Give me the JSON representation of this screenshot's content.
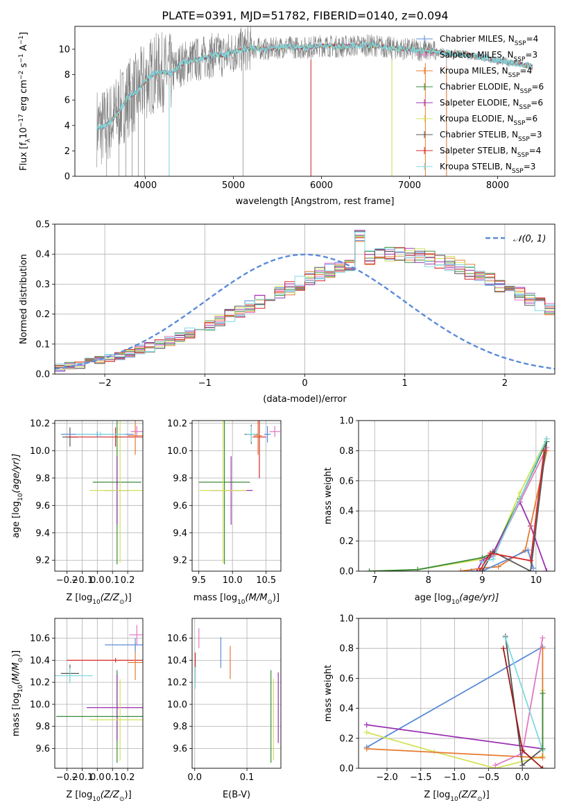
{
  "figure_title": "PLATE=0391, MJD=51782, FIBERID=0140, z=0.094",
  "palette": {
    "grey": "#808080",
    "cyan": "#7fd9e0",
    "red": "#d62728",
    "purple": "#9a2fb2",
    "green": "#3a8a3a",
    "yellow": "#d4e157",
    "orange": "#e57a30",
    "blue": "#5b8bd9",
    "pink": "#e377c2",
    "darkgrey": "#555555",
    "darkred": "#a01818"
  },
  "chart_data": [
    {
      "id": "spectrum",
      "type": "line",
      "title": "PLATE=0391, MJD=51782, FIBERID=0140, z=0.094",
      "xlabel": "wavelength [Angstrom, rest frame]",
      "ylabel_main": "Flux [f",
      "ylabel_sub": "λ",
      "ylabel_rest": "10",
      "ylabel_exp": "−17",
      "ylabel_units": " erg cm",
      "ylabel_exp2": "−2",
      "ylabel_s": " s",
      "ylabel_exp3": "−1",
      "ylabel_A": " A",
      "ylabel_exp4": "−1",
      "ylabel_end": "]",
      "xlim": [
        3200,
        8650
      ],
      "ylim": [
        0,
        11.8
      ],
      "xticks": [
        4000,
        5000,
        6000,
        7000,
        8000
      ],
      "yticks": [
        0,
        2,
        4,
        6,
        8,
        10
      ],
      "grid": false,
      "legend_position": "top-right",
      "continuum": {
        "x": [
          3450,
          3500,
          3600,
          3700,
          3800,
          3900,
          4000,
          4100,
          4200,
          4300,
          4400,
          4500,
          4600,
          4700,
          4800,
          4900,
          5000,
          5200,
          5400,
          5600,
          5800,
          6000,
          6200,
          6400,
          6600,
          6800,
          7000,
          7200,
          7400,
          7600,
          7800,
          8000,
          8200,
          8400
        ],
        "y": [
          3.9,
          3.8,
          4.3,
          5.1,
          6.2,
          6.6,
          7.5,
          8.1,
          8.2,
          8.1,
          8.8,
          9.1,
          9.2,
          9.4,
          9.6,
          9.5,
          9.8,
          10.1,
          10.0,
          10.2,
          10.1,
          10.3,
          10.2,
          10.3,
          10.3,
          10.1,
          10.0,
          9.9,
          9.7,
          9.6,
          9.4,
          9.1,
          8.9,
          8.6
        ]
      },
      "legend": [
        {
          "main": "Chabrier MILES, N",
          "sub": "SSP",
          "end": "=4",
          "color": "#5b8bd9"
        },
        {
          "main": "Salpeter MILES, N",
          "sub": "SSP",
          "end": "=3",
          "color": "#e377c2"
        },
        {
          "main": "Kroupa MILES, N",
          "sub": "SSP",
          "end": "=4",
          "color": "#e57a30"
        },
        {
          "main": "Chabrier ELODIE, N",
          "sub": "SSP",
          "end": "=6",
          "color": "#3a8a3a"
        },
        {
          "main": "Salpeter ELODIE, N",
          "sub": "SSP",
          "end": "=6",
          "color": "#9a2fb2"
        },
        {
          "main": "Kroupa ELODIE, N",
          "sub": "SSP",
          "end": "=6",
          "color": "#d4e157"
        },
        {
          "main": "Chabrier STELIB, N",
          "sub": "SSP",
          "end": "=3",
          "color": "#555555"
        },
        {
          "main": "Salpeter STELIB, N",
          "sub": "SSP",
          "end": "=4",
          "color": "#d62728"
        },
        {
          "main": "Kroupa STELIB, N",
          "sub": "SSP",
          "end": "=3",
          "color": "#7fd9e0"
        }
      ]
    },
    {
      "id": "residuals",
      "type": "line",
      "xlabel": "(data-model)/error",
      "ylabel": "Normed distribution",
      "xlim": [
        -2.5,
        2.5
      ],
      "ylim": [
        0,
        0.5
      ],
      "xticks": [
        -2,
        -1,
        0,
        1,
        2
      ],
      "yticks": [
        0.0,
        0.1,
        0.2,
        0.3,
        0.4,
        0.5
      ],
      "grid": true,
      "legend_position": "top-right",
      "gaussian_label": "𝒩(0, 1)",
      "gaussian_color": "#5b8bd9",
      "hist_bin_width": 0.1,
      "hist_base": [
        0.02,
        0.022,
        0.027,
        0.032,
        0.04,
        0.046,
        0.055,
        0.062,
        0.07,
        0.08,
        0.09,
        0.1,
        0.112,
        0.125,
        0.138,
        0.151,
        0.165,
        0.18,
        0.195,
        0.21,
        0.225,
        0.241,
        0.256,
        0.272,
        0.288,
        0.302,
        0.318,
        0.332,
        0.346,
        0.36,
        0.37,
        0.38,
        0.388,
        0.395,
        0.4,
        0.4,
        0.398,
        0.393,
        0.385,
        0.377,
        0.367,
        0.355,
        0.342,
        0.328,
        0.313,
        0.298,
        0.282,
        0.266,
        0.25,
        0.233,
        0.217,
        0.201,
        0.186,
        0.17,
        0.156,
        0.142,
        0.129,
        0.116,
        0.104,
        0.093,
        0.083,
        0.073,
        0.064,
        0.056,
        0.049,
        0.043,
        0.037,
        0.032,
        0.027,
        0.022
      ]
    },
    {
      "id": "age_vs_Z",
      "type": "scatter",
      "xlabel": "Z [log",
      "xlabel_sub": "10",
      "xlabel_rest": "(Z/Z",
      "xlabel_sun": "⊙",
      "xlabel_end": ")]",
      "ylabel": "age  [log",
      "ylabel_sub": "10",
      "ylabel_rest": "(age/yr)]",
      "xlim": [
        -0.28,
        0.3
      ],
      "ylim": [
        9.12,
        10.22
      ],
      "xticks": [
        -0.2,
        -0.1,
        0.0,
        0.1,
        0.2
      ],
      "yticks": [
        9.2,
        9.4,
        9.6,
        9.8,
        10.0,
        10.2
      ],
      "grid": true,
      "points": [
        {
          "x": 0.13,
          "y": 9.77,
          "xerr": 0.16,
          "yerr": 0.6,
          "color": "#3a8a3a"
        },
        {
          "x": 0.13,
          "y": 9.71,
          "xerr": 0.08,
          "yerr": 0.25,
          "color": "#9a2fb2"
        },
        {
          "x": 0.15,
          "y": 9.71,
          "xerr": 0.2,
          "yerr": 0.53,
          "color": "#d4e157"
        },
        {
          "x": -0.18,
          "y": 10.1,
          "xerr": 0.05,
          "yerr": 0.07,
          "color": "#555555"
        },
        {
          "x": 0.12,
          "y": 10.1,
          "xerr": 0.32,
          "yerr": 0.07,
          "color": "#d62728"
        },
        {
          "x": 0.25,
          "y": 10.11,
          "xerr": 0.05,
          "yerr": 0.14,
          "color": "#e57a30"
        },
        {
          "x": 0.26,
          "y": 10.14,
          "xerr": 0.04,
          "yerr": 0.04,
          "color": "#e377c2"
        },
        {
          "x": 0.0,
          "y": 10.12,
          "xerr": 0.24,
          "yerr": 0.02,
          "color": "#5b8bd9"
        },
        {
          "x": 0.02,
          "y": 10.12,
          "xerr": 0.16,
          "yerr": 0.02,
          "color": "#7fd9e0"
        }
      ]
    },
    {
      "id": "age_vs_mass",
      "type": "scatter",
      "xlabel": "mass [log",
      "xlabel_sub": "10",
      "xlabel_rest": "(M/M",
      "xlabel_sun": "⊙",
      "xlabel_end": ")]",
      "xlim": [
        9.4,
        10.72
      ],
      "ylim": [
        9.12,
        10.22
      ],
      "xticks": [
        9.5,
        10.0,
        10.5
      ],
      "yticks": [
        9.2,
        9.4,
        9.6,
        9.8,
        10.0,
        10.2
      ],
      "grid": true,
      "points": [
        {
          "x": 9.88,
          "y": 9.77,
          "xerr": 0.38,
          "yerr": 0.6,
          "color": "#3a8a3a"
        },
        {
          "x": 9.98,
          "y": 9.71,
          "xerr": 0.32,
          "yerr": 0.25,
          "color": "#9a2fb2"
        },
        {
          "x": 9.86,
          "y": 9.71,
          "xerr": 0.35,
          "yerr": 0.53,
          "color": "#d4e157"
        },
        {
          "x": 10.28,
          "y": 10.12,
          "xerr": 0.1,
          "yerr": 0.07,
          "color": "#555555"
        },
        {
          "x": 10.4,
          "y": 10.1,
          "xerr": 0.1,
          "yerr": 0.3,
          "color": "#d62728"
        },
        {
          "x": 10.38,
          "y": 10.11,
          "xerr": 0.06,
          "yerr": 0.14,
          "color": "#e57a30"
        },
        {
          "x": 10.63,
          "y": 10.14,
          "xerr": 0.08,
          "yerr": 0.04,
          "color": "#e377c2"
        },
        {
          "x": 10.52,
          "y": 10.12,
          "xerr": 0.05,
          "yerr": 0.06,
          "color": "#5b8bd9"
        },
        {
          "x": 10.28,
          "y": 10.12,
          "xerr": 0.08,
          "yerr": 0.06,
          "color": "#7fd9e0"
        }
      ]
    },
    {
      "id": "mass_weight_vs_age",
      "type": "line",
      "xlabel": "age  [log",
      "xlabel_sub": "10",
      "xlabel_rest": "(age/yr)]",
      "ylabel": "mass weight",
      "xlim": [
        6.7,
        10.35
      ],
      "ylim": [
        0,
        1.0
      ],
      "xticks": [
        7,
        8,
        9,
        10
      ],
      "yticks": [
        0.0,
        0.2,
        0.4,
        0.6,
        0.8,
        1.0
      ],
      "grid": true,
      "series": [
        {
          "color": "#d4e157",
          "x": [
            6.9,
            7.8,
            9.0,
            9.2,
            9.7,
            10.2
          ],
          "y": [
            0.0,
            0.01,
            0.08,
            0.1,
            0.52,
            0.88
          ]
        },
        {
          "color": "#3a8a3a",
          "x": [
            6.9,
            7.8,
            9.0,
            9.2,
            9.7,
            10.2
          ],
          "y": [
            0.0,
            0.01,
            0.09,
            0.12,
            0.48,
            0.86
          ]
        },
        {
          "color": "#9a2fb2",
          "x": [
            8.9,
            9.0,
            9.2,
            9.7,
            9.9,
            10.2
          ],
          "y": [
            0.0,
            0.07,
            0.12,
            0.46,
            0.3,
            0.0
          ]
        },
        {
          "color": "#e57a30",
          "x": [
            8.6,
            9.0,
            9.3,
            9.8,
            10.2
          ],
          "y": [
            0.0,
            0.02,
            0.03,
            0.14,
            0.8
          ]
        },
        {
          "color": "#5b8bd9",
          "x": [
            8.8,
            9.0,
            9.85,
            9.95
          ],
          "y": [
            0.0,
            0.0,
            0.14,
            0.02
          ]
        },
        {
          "color": "#e377c2",
          "x": [
            9.0,
            9.2,
            10.2
          ],
          "y": [
            0.06,
            0.1,
            0.82
          ]
        },
        {
          "color": "#555555",
          "x": [
            9.0,
            9.2,
            9.9,
            10.2
          ],
          "y": [
            0.0,
            0.13,
            0.0,
            0.88
          ]
        },
        {
          "color": "#7fd9e0",
          "x": [
            9.0,
            9.2,
            10.2
          ],
          "y": [
            0.06,
            0.08,
            0.88
          ]
        },
        {
          "color": "#d62728",
          "x": [
            8.95,
            9.15,
            9.9,
            10.15
          ],
          "y": [
            0.0,
            0.12,
            0.07,
            0.8
          ]
        }
      ]
    },
    {
      "id": "mass_vs_Z",
      "type": "scatter",
      "xlabel": "Z [log",
      "xlabel_sub": "10",
      "xlabel_rest": "(Z/Z",
      "xlabel_sun": "⊙",
      "xlabel_end": ")]",
      "ylabel": "mass [log",
      "ylabel_sub": "10",
      "ylabel_rest": "(M/M",
      "ylabel_sun": "⊙",
      "ylabel_end": ")]",
      "xlim": [
        -0.28,
        0.3
      ],
      "ylim": [
        9.42,
        10.78
      ],
      "xticks": [
        -0.2,
        -0.1,
        0.0,
        0.1,
        0.2
      ],
      "yticks": [
        9.6,
        9.8,
        10.0,
        10.2,
        10.4,
        10.6
      ],
      "grid": true,
      "points": [
        {
          "x": 0.13,
          "y": 9.89,
          "xerr": 0.4,
          "yerr": 0.42,
          "color": "#3a8a3a"
        },
        {
          "x": 0.13,
          "y": 9.97,
          "xerr": 0.2,
          "yerr": 0.3,
          "color": "#9a2fb2"
        },
        {
          "x": 0.15,
          "y": 9.86,
          "xerr": 0.2,
          "yerr": 0.37,
          "color": "#d4e157"
        },
        {
          "x": -0.18,
          "y": 10.28,
          "xerr": 0.06,
          "yerr": 0.08,
          "color": "#555555"
        },
        {
          "x": 0.12,
          "y": 10.4,
          "xerr": 0.32,
          "yerr": 0.02,
          "color": "#d62728"
        },
        {
          "x": 0.25,
          "y": 10.38,
          "xerr": 0.05,
          "yerr": 0.16,
          "color": "#e57a30"
        },
        {
          "x": 0.26,
          "y": 10.63,
          "xerr": 0.05,
          "yerr": 0.09,
          "color": "#e377c2"
        },
        {
          "x": 0.25,
          "y": 10.54,
          "xerr": 0.2,
          "yerr": 0.06,
          "color": "#5b8bd9"
        },
        {
          "x": -0.18,
          "y": 10.26,
          "xerr": 0.15,
          "yerr": 0.07,
          "color": "#7fd9e0"
        }
      ]
    },
    {
      "id": "mass_vs_EBV",
      "type": "scatter",
      "xlabel": "E(B-V)",
      "xlim": [
        -0.005,
        0.165
      ],
      "ylim": [
        9.42,
        10.78
      ],
      "xticks": [
        0.0,
        0.1
      ],
      "yticks": [
        9.6,
        9.8,
        10.0,
        10.2,
        10.4,
        10.6
      ],
      "grid": true,
      "points": [
        {
          "x": 0.001,
          "y": 10.4,
          "yerr": 0.07,
          "color": "#d62728"
        },
        {
          "x": 0.001,
          "y": 10.28,
          "yerr": 0.07,
          "color": "#555555"
        },
        {
          "x": 0.001,
          "y": 10.24,
          "yerr": 0.1,
          "color": "#7fd9e0"
        },
        {
          "x": 0.008,
          "y": 10.6,
          "yerr": 0.09,
          "color": "#e377c2"
        },
        {
          "x": 0.05,
          "y": 10.47,
          "yerr": 0.14,
          "color": "#5b8bd9"
        },
        {
          "x": 0.068,
          "y": 10.38,
          "yerr": 0.15,
          "color": "#e57a30"
        },
        {
          "x": 0.146,
          "y": 9.89,
          "yerr": 0.42,
          "color": "#3a8a3a"
        },
        {
          "x": 0.151,
          "y": 9.86,
          "yerr": 0.37,
          "color": "#d4e157"
        },
        {
          "x": 0.16,
          "y": 9.97,
          "yerr": 0.32,
          "color": "#9a2fb2"
        }
      ]
    },
    {
      "id": "mass_weight_vs_Z",
      "type": "line",
      "xlabel": "Z [log",
      "xlabel_sub": "10",
      "xlabel_rest": "(Z/Z",
      "xlabel_sun": "⊙",
      "xlabel_end": ")]",
      "ylabel": "mass weight",
      "xlim": [
        -2.42,
        0.48
      ],
      "ylim": [
        0,
        1.0
      ],
      "xticks": [
        -2.0,
        -1.5,
        -1.0,
        -0.5,
        0.0
      ],
      "xtick_labels": [
        "−2.0",
        "−1.5",
        "−1.0",
        "−0.5",
        "0.0"
      ],
      "yticks": [
        0.0,
        0.2,
        0.4,
        0.6,
        0.8,
        1.0
      ],
      "grid": true,
      "series": [
        {
          "color": "#5b8bd9",
          "x": [
            -2.3,
            0.3
          ],
          "y": [
            0.14,
            0.81
          ]
        },
        {
          "color": "#9a2fb2",
          "x": [
            -2.3,
            0.3
          ],
          "y": [
            0.29,
            0.13
          ]
        },
        {
          "color": "#d4e157",
          "x": [
            -2.3,
            -1.3,
            -0.4,
            0.3,
            0.3
          ],
          "y": [
            0.24,
            0.11,
            0.0,
            0.08,
            0.52
          ]
        },
        {
          "color": "#e57a30",
          "x": [
            -2.3,
            0.3,
            0.3
          ],
          "y": [
            0.13,
            0.07,
            0.8
          ]
        },
        {
          "color": "#e377c2",
          "x": [
            -0.4,
            0.0,
            0.3
          ],
          "y": [
            0.02,
            0.1,
            0.87
          ]
        },
        {
          "color": "#555555",
          "x": [
            -0.25,
            0.0,
            0.3
          ],
          "y": [
            0.88,
            0.02,
            0.13
          ]
        },
        {
          "color": "#7fd9e0",
          "x": [
            -0.25,
            0.3
          ],
          "y": [
            0.87,
            0.12
          ]
        },
        {
          "color": "#3a8a3a",
          "x": [
            0.3,
            0.3
          ],
          "y": [
            0.13,
            0.5
          ]
        },
        {
          "color": "#a01818",
          "x": [
            -0.28,
            0.0,
            0.3
          ],
          "y": [
            0.8,
            0.12,
            0.0
          ]
        }
      ]
    }
  ]
}
